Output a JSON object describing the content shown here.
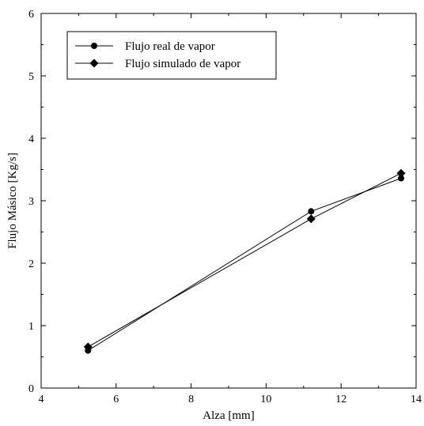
{
  "chart_data": {
    "type": "line",
    "title": "",
    "xlabel": "Alza [mm]",
    "ylabel": "Flujo Másico [Kg/s]",
    "xlim": [
      4,
      14
    ],
    "ylim": [
      0,
      6
    ],
    "xticks": [
      4,
      6,
      8,
      10,
      12,
      14
    ],
    "yticks": [
      0,
      1,
      2,
      3,
      4,
      5,
      6
    ],
    "grid": false,
    "legend_position": "top-left",
    "series": [
      {
        "name": "Flujo real de vapor",
        "marker": "circle",
        "color": "#000000",
        "points": [
          {
            "x": 5.25,
            "y": 0.6
          },
          {
            "x": 11.2,
            "y": 2.83
          },
          {
            "x": 13.6,
            "y": 3.36
          }
        ]
      },
      {
        "name": "Flujo simulado de vapor",
        "marker": "diamond",
        "color": "#000000",
        "points": [
          {
            "x": 5.25,
            "y": 0.66
          },
          {
            "x": 11.2,
            "y": 2.71
          },
          {
            "x": 13.6,
            "y": 3.44
          }
        ]
      }
    ]
  }
}
